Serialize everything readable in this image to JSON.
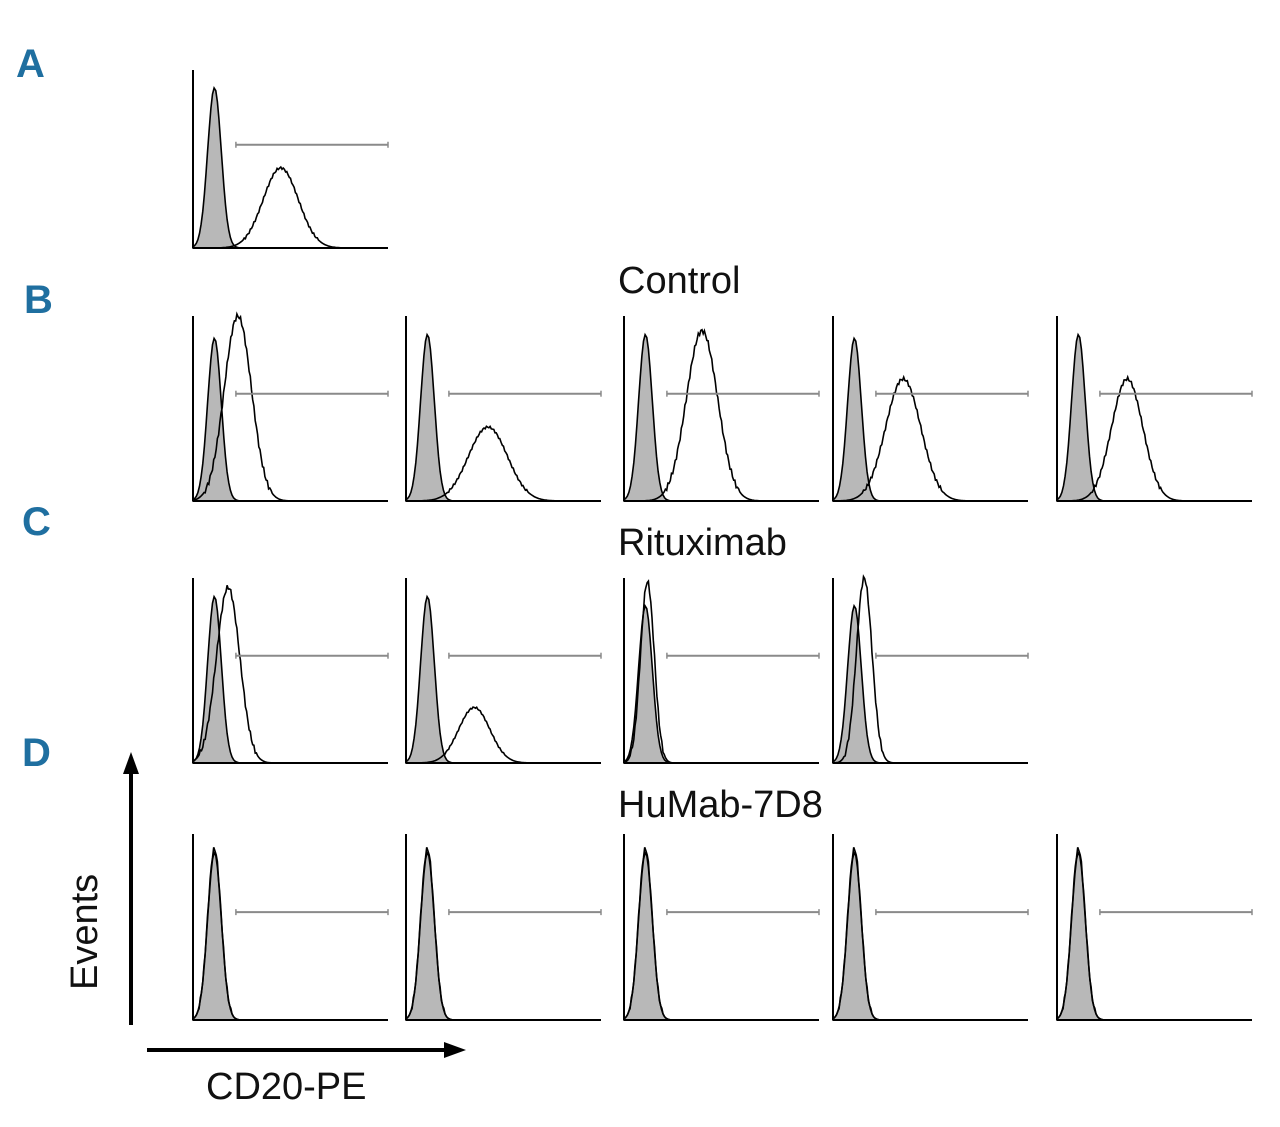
{
  "colors": {
    "letter": "#1f6fa0",
    "isotype_fill": "#b8b8b8",
    "line": "#000000",
    "marker": "#8a8a8a"
  },
  "panels": {
    "a": {
      "letter": "A",
      "title": ""
    },
    "b": {
      "letter": "B",
      "title": "Control"
    },
    "c": {
      "letter": "C",
      "title": "Rituximab"
    },
    "d": {
      "letter": "D",
      "title": "HuMab-7D8"
    }
  },
  "axes": {
    "y_label": "Events",
    "x_label": "CD20-PE"
  },
  "chart_data": {
    "type": "histogram-overlay",
    "description_units": "relative fluorescence position (0-1) and relative event count (0-1)",
    "rows": [
      {
        "row": "A",
        "title": "",
        "histograms": [
          {
            "isotype_peak": 0.11,
            "isotype_height": 0.9,
            "stain_peak": 0.45,
            "stain_height": 0.45,
            "stain_width": 0.09
          }
        ]
      },
      {
        "row": "B",
        "title": "Control",
        "histograms": [
          {
            "isotype_peak": 0.11,
            "isotype_height": 0.88,
            "stain_peak": 0.23,
            "stain_height": 1.0,
            "stain_width": 0.07
          },
          {
            "isotype_peak": 0.11,
            "isotype_height": 0.9,
            "stain_peak": 0.42,
            "stain_height": 0.4,
            "stain_width": 0.1
          },
          {
            "isotype_peak": 0.11,
            "isotype_height": 0.9,
            "stain_peak": 0.4,
            "stain_height": 0.92,
            "stain_width": 0.08
          },
          {
            "isotype_peak": 0.11,
            "isotype_height": 0.88,
            "stain_peak": 0.36,
            "stain_height": 0.66,
            "stain_width": 0.09
          },
          {
            "isotype_peak": 0.11,
            "isotype_height": 0.9,
            "stain_peak": 0.36,
            "stain_height": 0.66,
            "stain_width": 0.08
          }
        ]
      },
      {
        "row": "C",
        "title": "Rituximab",
        "histograms": [
          {
            "isotype_peak": 0.11,
            "isotype_height": 0.9,
            "stain_peak": 0.18,
            "stain_height": 0.95,
            "stain_width": 0.06
          },
          {
            "isotype_peak": 0.11,
            "isotype_height": 0.9,
            "stain_peak": 0.35,
            "stain_height": 0.3,
            "stain_width": 0.08
          },
          {
            "isotype_peak": 0.11,
            "isotype_height": 0.85,
            "stain_peak": 0.12,
            "stain_height": 0.98,
            "stain_width": 0.035
          },
          {
            "isotype_peak": 0.11,
            "isotype_height": 0.85,
            "stain_peak": 0.16,
            "stain_height": 1.0,
            "stain_width": 0.04
          }
        ]
      },
      {
        "row": "D",
        "title": "HuMab-7D8",
        "histograms": [
          {
            "isotype_peak": 0.11,
            "isotype_height": 0.9,
            "stain_peak": 0.11,
            "stain_height": 0.92,
            "stain_width": 0.035
          },
          {
            "isotype_peak": 0.11,
            "isotype_height": 0.9,
            "stain_peak": 0.11,
            "stain_height": 0.92,
            "stain_width": 0.035
          },
          {
            "isotype_peak": 0.11,
            "isotype_height": 0.9,
            "stain_peak": 0.11,
            "stain_height": 0.92,
            "stain_width": 0.035
          },
          {
            "isotype_peak": 0.11,
            "isotype_height": 0.9,
            "stain_peak": 0.11,
            "stain_height": 0.92,
            "stain_width": 0.035
          },
          {
            "isotype_peak": 0.11,
            "isotype_height": 0.9,
            "stain_peak": 0.11,
            "stain_height": 0.92,
            "stain_width": 0.035
          }
        ]
      }
    ],
    "xlabel": "CD20-PE",
    "ylabel": "Events"
  }
}
